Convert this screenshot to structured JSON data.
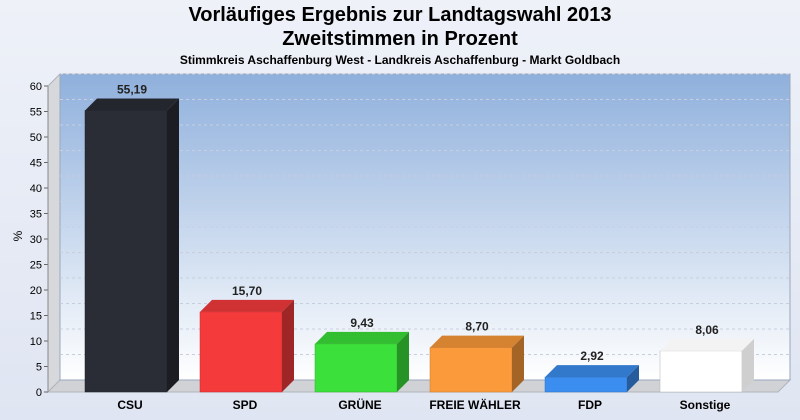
{
  "chart_data": {
    "type": "bar",
    "title": "Vorläufiges Ergebnis zur Landtagswahl 2013",
    "subtitle": "Zweitstimmen in Prozent",
    "subtitle2": "Stimmkreis Aschaffenburg West - Landkreis Aschaffenburg - Markt Goldbach",
    "ylabel": "%",
    "ylim": [
      0,
      60
    ],
    "ytick_step": 5,
    "yticks": [
      "0",
      "5",
      "10",
      "15",
      "20",
      "25",
      "30",
      "35",
      "40",
      "45",
      "50",
      "55",
      "60"
    ],
    "categories": [
      "CSU",
      "SPD",
      "GRÜNE",
      "FREIE WÄHLER",
      "FDP",
      "Sonstige"
    ],
    "values": [
      55.19,
      15.7,
      9.43,
      8.7,
      2.92,
      8.06
    ],
    "value_labels": [
      "55,19",
      "15,70",
      "9,43",
      "8,70",
      "2,92",
      "8,06"
    ],
    "colors": [
      "#2a2d36",
      "#f53a3c",
      "#3ce03a",
      "#fb9a3a",
      "#3b8ef0",
      "#ffffff"
    ],
    "grid": true
  }
}
